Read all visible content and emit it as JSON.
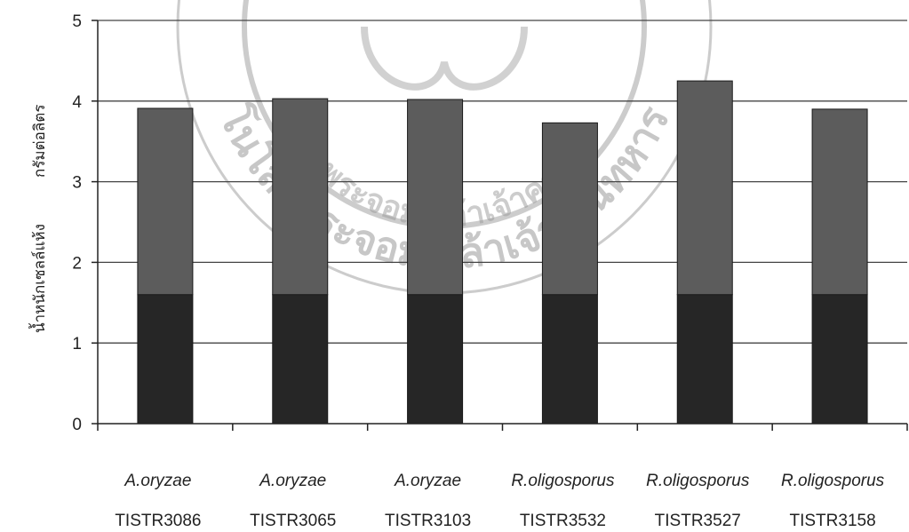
{
  "chart_data": {
    "type": "bar",
    "stacked": true,
    "categories": [
      {
        "species": "A.oryzae",
        "code": "TISTR3086"
      },
      {
        "species": "A.oryzae",
        "code": "TISTR3065"
      },
      {
        "species": "A.oryzae",
        "code": "TISTR3103"
      },
      {
        "species": "R.oligosporus",
        "code": "TISTR3532"
      },
      {
        "species": "R.oligosporus",
        "code": "TISTR3527"
      },
      {
        "species": "R.oligosporus",
        "code": "TISTR3158"
      }
    ],
    "series": [
      {
        "values": [
          1.6,
          1.6,
          1.6,
          1.6,
          1.6,
          1.6
        ],
        "color": "#262626"
      },
      {
        "values": [
          2.31,
          2.43,
          2.42,
          2.13,
          2.65,
          2.3
        ],
        "color": "#5c5c5c"
      }
    ],
    "totals": [
      3.91,
      4.03,
      4.02,
      3.73,
      4.25,
      3.9
    ],
    "ylabel_parts": [
      "น้ำหนักเซลล์แห้ง",
      "กรัมต่อลิตร"
    ],
    "ylim": [
      0,
      5
    ],
    "yticks": [
      0,
      1,
      2,
      3,
      4,
      5
    ],
    "grid": true,
    "watermark": {
      "text_upper": "โนโลยีพระจอมเกล้าเจ้าคุณทหาร",
      "text_lower": "พระจอมเกล้าเจ้าคุณ",
      "color": "#9a9a9a"
    }
  }
}
